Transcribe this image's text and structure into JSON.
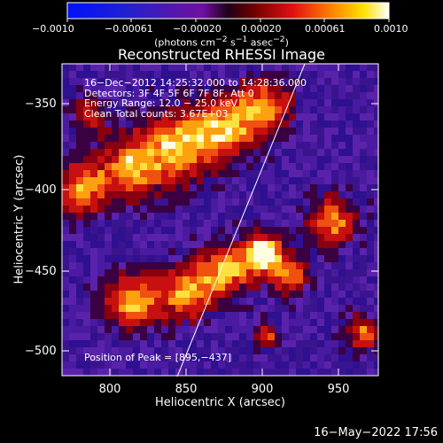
{
  "colorbar": {
    "ticks": [
      "−0.0010",
      "−0.00061",
      "−0.00020",
      "0.00020",
      "0.00061",
      "0.0010"
    ],
    "units_html": "(photons cm<sup>−2</sup> s<sup>−1</sup> asec<sup>−2</sup>)"
  },
  "plot": {
    "title": "Reconstructed RHESSI Image",
    "info_lines": [
      "16−Dec−2012 14:25:32.000 to 14:28:36.000",
      "Detectors: 3F 4F 5F 6F 7F 8F, Att 0",
      "Energy Range: 12.0 − 25.0 keV",
      "Clean     Total counts: 3.67E+03"
    ],
    "peak_label": "Position of Peak = [895,−437]",
    "xlabel": "Heliocentric X (arcsec)",
    "ylabel": "Heliocentric Y (arcsec)",
    "xticks": [
      "800",
      "850",
      "900",
      "950"
    ],
    "yticks": [
      "−350",
      "−400",
      "−450",
      "−500"
    ]
  },
  "footer": {
    "timestamp": "16−May−2022 17:56"
  },
  "colors": {
    "background": "#000000",
    "text": "#ffffff",
    "low": "#2a10a0",
    "mid": "#d01010",
    "high": "#ffffe0"
  }
}
